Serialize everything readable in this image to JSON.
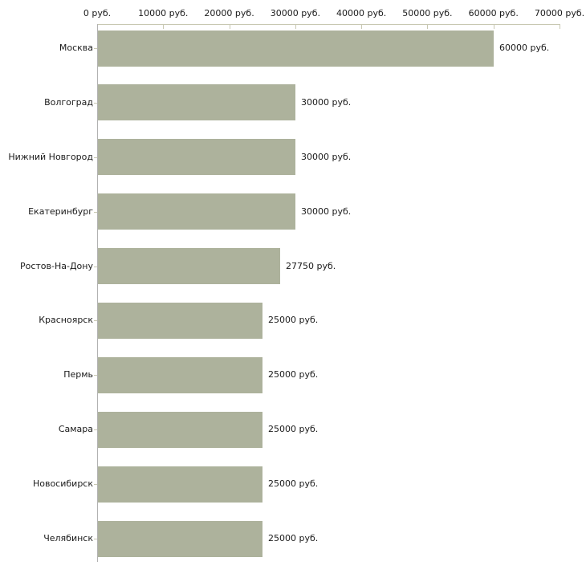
{
  "chart_data": {
    "type": "bar",
    "orientation": "horizontal",
    "title": "",
    "xlabel": "",
    "ylabel": "",
    "categories": [
      "Москва",
      "Волгоград",
      "Нижний Новгород",
      "Екатеринбург",
      "Ростов-На-Дону",
      "Красноярск",
      "Пермь",
      "Самара",
      "Новосибирск",
      "Челябинск"
    ],
    "values": [
      60000,
      30000,
      30000,
      30000,
      27750,
      25000,
      25000,
      25000,
      25000,
      25000
    ],
    "bar_labels": [
      "60000 руб.",
      "30000 руб.",
      "30000 руб.",
      "30000 руб.",
      "27750 руб.",
      "25000 руб.",
      "25000 руб.",
      "25000 руб.",
      "25000 руб.",
      "25000 руб."
    ],
    "x_axis": {
      "position": "top",
      "min": 0,
      "max": 70000,
      "tick_values": [
        0,
        10000,
        20000,
        30000,
        40000,
        50000,
        60000,
        70000
      ],
      "tick_labels": [
        "0 руб.",
        "10000 руб.",
        "20000 руб.",
        "30000 руб.",
        "40000 руб.",
        "50000 руб.",
        "60000 руб.",
        "70000 руб."
      ]
    },
    "grid": false,
    "legend": false,
    "colors": {
      "bar": "#adb29c",
      "x_axis_line": "#c8c8b2",
      "y_axis_line": "#b2b2b2",
      "text": "#1a1a1a",
      "background": "#ffffff"
    }
  }
}
